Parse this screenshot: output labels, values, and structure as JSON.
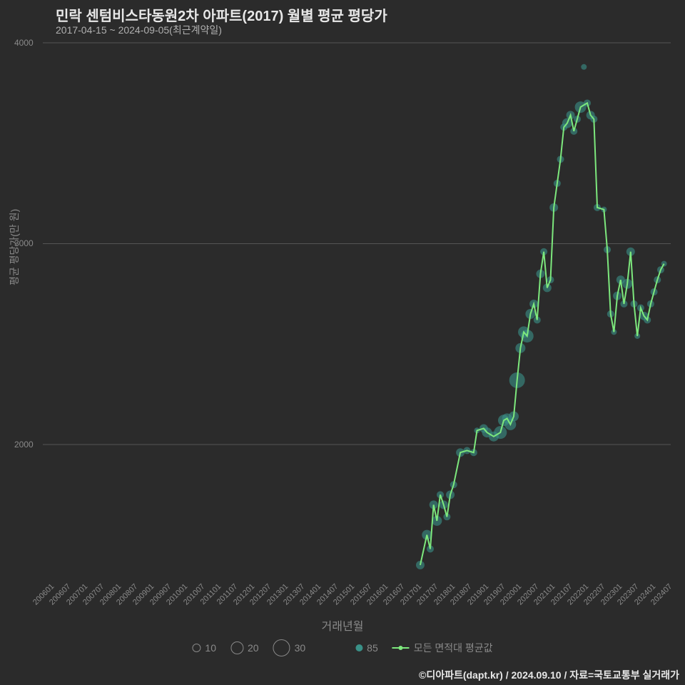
{
  "title": "민락 센텀비스타동원2차 아파트(2017) 월별 평균 평당가",
  "subtitle": "2017-04-15 ~ 2024-09-05(최근계약일)",
  "footer": "©디아파트(dapt.kr) / 2024.09.10 / 자료=국토교통부 실거래가",
  "y_axis_label": "평균 평당가(만 원)",
  "x_axis_label": "거래년월",
  "chart": {
    "type": "scatter+line",
    "background_color": "#2b2b2b",
    "grid_color": "#555555",
    "text_color": "#8a8a8a",
    "title_color": "#e8e8e8",
    "scatter_color": "#3a9188",
    "line_color": "#7de87d",
    "ylim": [
      1300,
      4000
    ],
    "xlim": [
      2006.0,
      2024.8
    ],
    "y_ticks": [
      2000,
      3000,
      4000
    ],
    "x_ticks": [
      "200601",
      "200607",
      "200701",
      "200707",
      "200801",
      "200807",
      "200901",
      "200907",
      "201001",
      "201007",
      "201101",
      "201107",
      "201201",
      "201207",
      "201301",
      "201307",
      "201401",
      "201407",
      "201501",
      "201507",
      "201601",
      "201607",
      "201701",
      "201707",
      "201801",
      "201807",
      "201901",
      "201907",
      "202001",
      "202007",
      "202101",
      "202107",
      "202201",
      "202207",
      "202301",
      "202307",
      "202401",
      "202407"
    ],
    "x_tick_positions": [
      2006.0,
      2006.5,
      2007.0,
      2007.5,
      2008.0,
      2008.5,
      2009.0,
      2009.5,
      2010.0,
      2010.5,
      2011.0,
      2011.5,
      2012.0,
      2012.5,
      2013.0,
      2013.5,
      2014.0,
      2014.5,
      2015.0,
      2015.5,
      2016.0,
      2016.5,
      2017.0,
      2017.5,
      2018.0,
      2018.5,
      2019.0,
      2019.5,
      2020.0,
      2020.5,
      2021.0,
      2021.5,
      2022.0,
      2022.5,
      2023.0,
      2023.5,
      2024.0,
      2024.5
    ],
    "scatter": [
      {
        "x": 2017.3,
        "y": 1400,
        "s": 12
      },
      {
        "x": 2017.5,
        "y": 1550,
        "s": 14
      },
      {
        "x": 2017.6,
        "y": 1480,
        "s": 10
      },
      {
        "x": 2017.7,
        "y": 1700,
        "s": 12
      },
      {
        "x": 2017.8,
        "y": 1620,
        "s": 14
      },
      {
        "x": 2017.9,
        "y": 1750,
        "s": 10
      },
      {
        "x": 2018.0,
        "y": 1700,
        "s": 12
      },
      {
        "x": 2018.1,
        "y": 1640,
        "s": 10
      },
      {
        "x": 2018.2,
        "y": 1750,
        "s": 12
      },
      {
        "x": 2018.3,
        "y": 1800,
        "s": 10
      },
      {
        "x": 2018.5,
        "y": 1960,
        "s": 12
      },
      {
        "x": 2018.7,
        "y": 1970,
        "s": 10
      },
      {
        "x": 2018.9,
        "y": 1960,
        "s": 10
      },
      {
        "x": 2019.0,
        "y": 2070,
        "s": 8
      },
      {
        "x": 2019.2,
        "y": 2080,
        "s": 12
      },
      {
        "x": 2019.3,
        "y": 2060,
        "s": 14
      },
      {
        "x": 2019.5,
        "y": 2040,
        "s": 14
      },
      {
        "x": 2019.7,
        "y": 2060,
        "s": 18
      },
      {
        "x": 2019.8,
        "y": 2120,
        "s": 16
      },
      {
        "x": 2019.9,
        "y": 2130,
        "s": 14
      },
      {
        "x": 2020.0,
        "y": 2100,
        "s": 16
      },
      {
        "x": 2020.1,
        "y": 2140,
        "s": 14
      },
      {
        "x": 2020.2,
        "y": 2320,
        "s": 22
      },
      {
        "x": 2020.3,
        "y": 2480,
        "s": 14
      },
      {
        "x": 2020.4,
        "y": 2560,
        "s": 16
      },
      {
        "x": 2020.5,
        "y": 2540,
        "s": 18
      },
      {
        "x": 2020.6,
        "y": 2650,
        "s": 14
      },
      {
        "x": 2020.7,
        "y": 2700,
        "s": 12
      },
      {
        "x": 2020.8,
        "y": 2620,
        "s": 10
      },
      {
        "x": 2020.9,
        "y": 2850,
        "s": 12
      },
      {
        "x": 2021.0,
        "y": 2960,
        "s": 10
      },
      {
        "x": 2021.1,
        "y": 2780,
        "s": 12
      },
      {
        "x": 2021.2,
        "y": 2820,
        "s": 10
      },
      {
        "x": 2021.3,
        "y": 3180,
        "s": 12
      },
      {
        "x": 2021.4,
        "y": 3300,
        "s": 10
      },
      {
        "x": 2021.5,
        "y": 3420,
        "s": 10
      },
      {
        "x": 2021.6,
        "y": 3580,
        "s": 10
      },
      {
        "x": 2021.7,
        "y": 3600,
        "s": 14
      },
      {
        "x": 2021.8,
        "y": 3640,
        "s": 12
      },
      {
        "x": 2021.9,
        "y": 3560,
        "s": 10
      },
      {
        "x": 2022.0,
        "y": 3620,
        "s": 10
      },
      {
        "x": 2022.1,
        "y": 3680,
        "s": 16
      },
      {
        "x": 2022.2,
        "y": 3880,
        "s": 8
      },
      {
        "x": 2022.3,
        "y": 3700,
        "s": 10
      },
      {
        "x": 2022.4,
        "y": 3640,
        "s": 12
      },
      {
        "x": 2022.5,
        "y": 3620,
        "s": 10
      },
      {
        "x": 2022.6,
        "y": 3180,
        "s": 10
      },
      {
        "x": 2022.8,
        "y": 3170,
        "s": 8
      },
      {
        "x": 2022.9,
        "y": 2970,
        "s": 10
      },
      {
        "x": 2023.0,
        "y": 2650,
        "s": 10
      },
      {
        "x": 2023.1,
        "y": 2560,
        "s": 8
      },
      {
        "x": 2023.2,
        "y": 2740,
        "s": 12
      },
      {
        "x": 2023.3,
        "y": 2820,
        "s": 12
      },
      {
        "x": 2023.4,
        "y": 2700,
        "s": 10
      },
      {
        "x": 2023.5,
        "y": 2800,
        "s": 14
      },
      {
        "x": 2023.6,
        "y": 2960,
        "s": 12
      },
      {
        "x": 2023.7,
        "y": 2700,
        "s": 10
      },
      {
        "x": 2023.8,
        "y": 2540,
        "s": 8
      },
      {
        "x": 2023.9,
        "y": 2680,
        "s": 10
      },
      {
        "x": 2024.0,
        "y": 2640,
        "s": 12
      },
      {
        "x": 2024.1,
        "y": 2620,
        "s": 10
      },
      {
        "x": 2024.2,
        "y": 2700,
        "s": 10
      },
      {
        "x": 2024.3,
        "y": 2760,
        "s": 10
      },
      {
        "x": 2024.4,
        "y": 2820,
        "s": 10
      },
      {
        "x": 2024.5,
        "y": 2870,
        "s": 10
      },
      {
        "x": 2024.6,
        "y": 2900,
        "s": 8
      }
    ],
    "line": [
      {
        "x": 2017.3,
        "y": 1400
      },
      {
        "x": 2017.5,
        "y": 1550
      },
      {
        "x": 2017.6,
        "y": 1480
      },
      {
        "x": 2017.7,
        "y": 1700
      },
      {
        "x": 2017.8,
        "y": 1620
      },
      {
        "x": 2017.9,
        "y": 1750
      },
      {
        "x": 2018.0,
        "y": 1700
      },
      {
        "x": 2018.1,
        "y": 1640
      },
      {
        "x": 2018.2,
        "y": 1750
      },
      {
        "x": 2018.3,
        "y": 1800
      },
      {
        "x": 2018.5,
        "y": 1960
      },
      {
        "x": 2018.7,
        "y": 1970
      },
      {
        "x": 2018.9,
        "y": 1960
      },
      {
        "x": 2019.0,
        "y": 2070
      },
      {
        "x": 2019.2,
        "y": 2080
      },
      {
        "x": 2019.3,
        "y": 2060
      },
      {
        "x": 2019.5,
        "y": 2040
      },
      {
        "x": 2019.7,
        "y": 2060
      },
      {
        "x": 2019.8,
        "y": 2120
      },
      {
        "x": 2019.9,
        "y": 2130
      },
      {
        "x": 2020.0,
        "y": 2100
      },
      {
        "x": 2020.1,
        "y": 2140
      },
      {
        "x": 2020.2,
        "y": 2320
      },
      {
        "x": 2020.3,
        "y": 2480
      },
      {
        "x": 2020.4,
        "y": 2560
      },
      {
        "x": 2020.5,
        "y": 2540
      },
      {
        "x": 2020.6,
        "y": 2650
      },
      {
        "x": 2020.7,
        "y": 2700
      },
      {
        "x": 2020.8,
        "y": 2620
      },
      {
        "x": 2020.9,
        "y": 2850
      },
      {
        "x": 2021.0,
        "y": 2960
      },
      {
        "x": 2021.1,
        "y": 2780
      },
      {
        "x": 2021.2,
        "y": 2820
      },
      {
        "x": 2021.3,
        "y": 3180
      },
      {
        "x": 2021.4,
        "y": 3300
      },
      {
        "x": 2021.5,
        "y": 3420
      },
      {
        "x": 2021.6,
        "y": 3580
      },
      {
        "x": 2021.7,
        "y": 3600
      },
      {
        "x": 2021.8,
        "y": 3640
      },
      {
        "x": 2021.9,
        "y": 3560
      },
      {
        "x": 2022.0,
        "y": 3620
      },
      {
        "x": 2022.1,
        "y": 3680
      },
      {
        "x": 2022.3,
        "y": 3700
      },
      {
        "x": 2022.4,
        "y": 3640
      },
      {
        "x": 2022.5,
        "y": 3620
      },
      {
        "x": 2022.6,
        "y": 3180
      },
      {
        "x": 2022.8,
        "y": 3170
      },
      {
        "x": 2022.9,
        "y": 2970
      },
      {
        "x": 2023.0,
        "y": 2650
      },
      {
        "x": 2023.1,
        "y": 2560
      },
      {
        "x": 2023.2,
        "y": 2740
      },
      {
        "x": 2023.3,
        "y": 2820
      },
      {
        "x": 2023.4,
        "y": 2700
      },
      {
        "x": 2023.5,
        "y": 2800
      },
      {
        "x": 2023.6,
        "y": 2960
      },
      {
        "x": 2023.7,
        "y": 2700
      },
      {
        "x": 2023.8,
        "y": 2540
      },
      {
        "x": 2023.9,
        "y": 2680
      },
      {
        "x": 2024.0,
        "y": 2640
      },
      {
        "x": 2024.1,
        "y": 2620
      },
      {
        "x": 2024.2,
        "y": 2700
      },
      {
        "x": 2024.3,
        "y": 2760
      },
      {
        "x": 2024.4,
        "y": 2820
      },
      {
        "x": 2024.5,
        "y": 2870
      },
      {
        "x": 2024.6,
        "y": 2900
      }
    ]
  },
  "legend": {
    "size_labels": [
      "10",
      "20",
      "30"
    ],
    "size_radii": [
      6,
      9,
      12
    ],
    "series_label": "85",
    "line_label": "모든 면적대 평균값"
  }
}
